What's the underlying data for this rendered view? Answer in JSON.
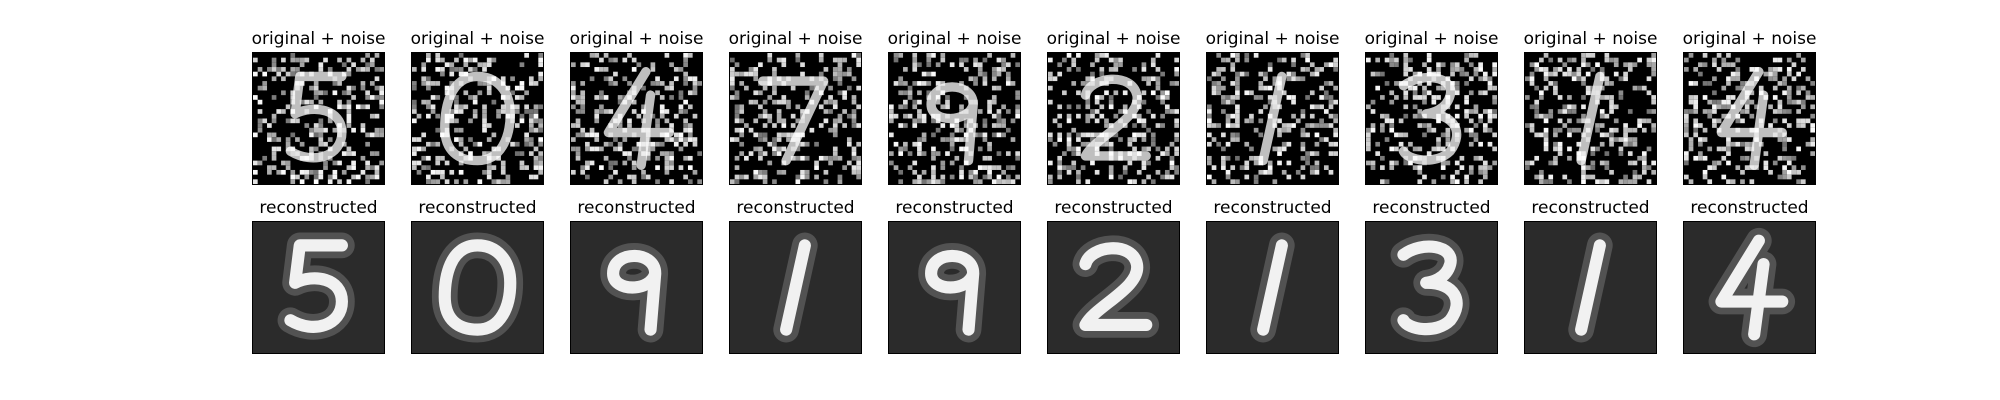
{
  "rows": [
    {
      "kind": "noisy",
      "panels": [
        {
          "title": "original + noise",
          "digit": "5"
        },
        {
          "title": "original + noise",
          "digit": "0"
        },
        {
          "title": "original + noise",
          "digit": "4"
        },
        {
          "title": "original + noise",
          "digit": "7"
        },
        {
          "title": "original + noise",
          "digit": "9"
        },
        {
          "title": "original + noise",
          "digit": "2"
        },
        {
          "title": "original + noise",
          "digit": "1"
        },
        {
          "title": "original + noise",
          "digit": "3"
        },
        {
          "title": "original + noise",
          "digit": "1"
        },
        {
          "title": "original + noise",
          "digit": "4"
        }
      ]
    },
    {
      "kind": "reconstructed",
      "panels": [
        {
          "title": "reconstructed",
          "digit": "5"
        },
        {
          "title": "reconstructed",
          "digit": "0"
        },
        {
          "title": "reconstructed",
          "digit": "9"
        },
        {
          "title": "reconstructed",
          "digit": "1"
        },
        {
          "title": "reconstructed",
          "digit": "9"
        },
        {
          "title": "reconstructed",
          "digit": "2"
        },
        {
          "title": "reconstructed",
          "digit": "1"
        },
        {
          "title": "reconstructed",
          "digit": "3"
        },
        {
          "title": "reconstructed",
          "digit": "1"
        },
        {
          "title": "reconstructed",
          "digit": "4"
        }
      ]
    }
  ],
  "colors": {
    "background": "#ffffff",
    "image_dark": "#000000",
    "recon_bg": "#2b2b2b",
    "stroke": "#ffffff",
    "frame": "#000000"
  }
}
